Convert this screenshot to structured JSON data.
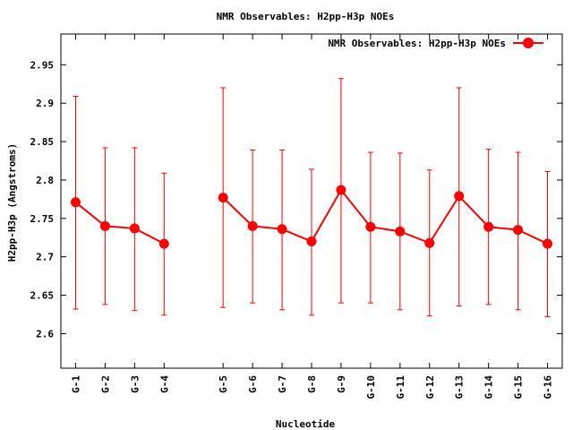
{
  "chart_data": {
    "type": "line",
    "title": "NMR Observables: H2pp-H3p NOEs",
    "xlabel": "Nucleotide",
    "ylabel": "H2pp-H3p (Angstroms)",
    "ylim": [
      2.555,
      2.99
    ],
    "yticks": [
      2.6,
      2.65,
      2.7,
      2.75,
      2.8,
      2.85,
      2.9,
      2.95
    ],
    "ytick_labels": [
      "2.6",
      "2.65",
      "2.7",
      "2.75",
      "2.8",
      "2.85",
      "2.9",
      "2.95"
    ],
    "xlim": [
      0.5,
      17.5
    ],
    "legend_position": "top-right",
    "series": [
      {
        "name": "NMR Observables: H2pp-H3p NOEs",
        "color": "#ff0000",
        "points": [
          {
            "label": "G-1",
            "x": 1,
            "y": 2.771,
            "low": 2.632,
            "high": 2.909
          },
          {
            "label": "G-2",
            "x": 2,
            "y": 2.74,
            "low": 2.638,
            "high": 2.842
          },
          {
            "label": "G-3",
            "x": 3,
            "y": 2.737,
            "low": 2.63,
            "high": 2.842
          },
          {
            "label": "G-4",
            "x": 4,
            "y": 2.717,
            "low": 2.624,
            "high": 2.809
          },
          {
            "label": "G-5",
            "x": 6,
            "y": 2.777,
            "low": 2.634,
            "high": 2.92
          },
          {
            "label": "G-6",
            "x": 7,
            "y": 2.74,
            "low": 2.64,
            "high": 2.839
          },
          {
            "label": "G-7",
            "x": 8,
            "y": 2.736,
            "low": 2.631,
            "high": 2.839
          },
          {
            "label": "G-8",
            "x": 9,
            "y": 2.72,
            "low": 2.624,
            "high": 2.814
          },
          {
            "label": "G-9",
            "x": 10,
            "y": 2.787,
            "low": 2.64,
            "high": 2.932
          },
          {
            "label": "G-10",
            "x": 11,
            "y": 2.739,
            "low": 2.64,
            "high": 2.836
          },
          {
            "label": "G-11",
            "x": 12,
            "y": 2.733,
            "low": 2.631,
            "high": 2.835
          },
          {
            "label": "G-12",
            "x": 13,
            "y": 2.718,
            "low": 2.623,
            "high": 2.813
          },
          {
            "label": "G-13",
            "x": 14,
            "y": 2.779,
            "low": 2.636,
            "high": 2.92
          },
          {
            "label": "G-14",
            "x": 15,
            "y": 2.739,
            "low": 2.638,
            "high": 2.84
          },
          {
            "label": "G-15",
            "x": 16,
            "y": 2.735,
            "low": 2.631,
            "high": 2.836
          },
          {
            "label": "G-16",
            "x": 17,
            "y": 2.717,
            "low": 2.622,
            "high": 2.811
          }
        ]
      }
    ]
  }
}
